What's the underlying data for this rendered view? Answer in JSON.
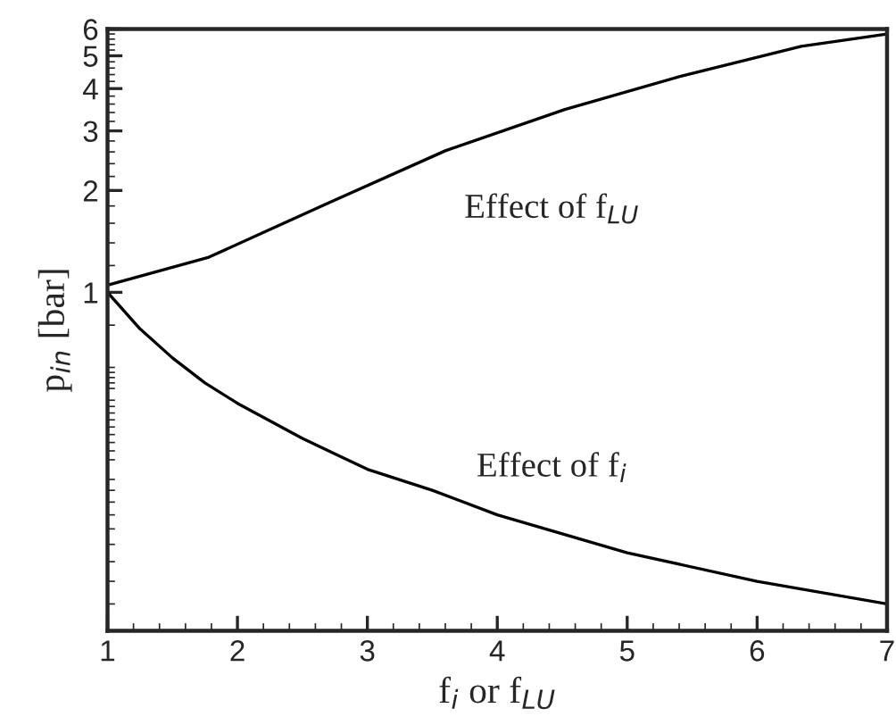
{
  "chart_data": {
    "type": "line",
    "xlabel": "f$_{i}$ or f$_{LU}$",
    "ylabel": "p$_{in}$ [bar]",
    "log": "y",
    "xlim": [
      1,
      7
    ],
    "ylim": [
      0.1,
      6
    ],
    "xticks": [
      1,
      2,
      3,
      4,
      5,
      6,
      7
    ],
    "yticks": [
      1,
      2,
      3,
      4,
      5,
      6
    ],
    "grid": false,
    "legend": false,
    "marker": "none",
    "line_style": "solid",
    "series": [
      {
        "color": "#000000",
        "x": [
          1,
          1.78,
          2.69,
          3.6,
          4.52,
          5.42,
          6.34,
          7
        ],
        "values": [
          1.05,
          1.27,
          1.83,
          2.62,
          3.47,
          4.36,
          5.33,
          5.8
        ]
      },
      {
        "color": "#000000",
        "x": [
          1,
          1.25,
          1.5,
          1.75,
          2,
          2.5,
          3,
          3.5,
          4,
          5,
          6,
          7
        ],
        "values": [
          1.0,
          0.78,
          0.64,
          0.54,
          0.47,
          0.37,
          0.3,
          0.26,
          0.22,
          0.17,
          0.14,
          0.12
        ]
      }
    ],
    "annotations": [
      "Effect of f$_{LU}$",
      "Effect of f$_{i}$"
    ]
  }
}
